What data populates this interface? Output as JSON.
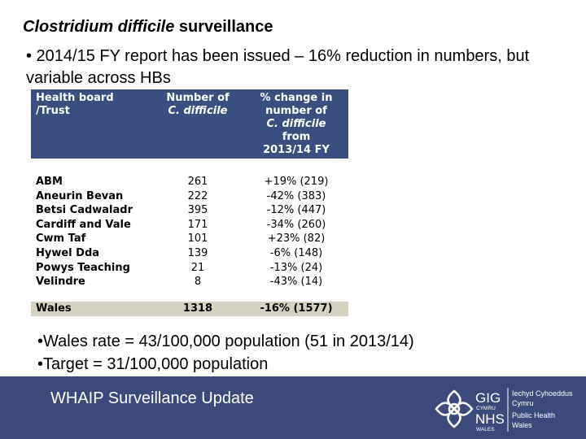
{
  "slide": {
    "title_italic": "Clostridium difficile",
    "title_rest": " surveillance",
    "bullet_main": "• 2014/15 FY report has been issued – 16% reduction in numbers, but variable across HBs",
    "bullets_lower": [
      "•Wales rate = 43/100,000 population (51 in 2013/14)",
      "•Target = 31/100,000 population"
    ]
  },
  "table": {
    "headers": {
      "col1_line1": "Health board",
      "col1_line2": "/Trust",
      "col2_line1": "Number of",
      "col2_line2": "C. difficile",
      "col3_line1": "% change in",
      "col3_line2": "number of",
      "col3_line3": "C. difficile",
      "col3_line4": "from",
      "col3_line5": "2013/14 FY"
    },
    "rows": [
      {
        "name": "ABM",
        "number": "261",
        "change": "+19% (219)"
      },
      {
        "name": "Aneurin Bevan",
        "number": "222",
        "change": "-42% (383)"
      },
      {
        "name": "Betsi Cadwaladr",
        "number": "395",
        "change": "-12% (447)"
      },
      {
        "name": "Cardiff and Vale",
        "number": "171",
        "change": "-34% (260)"
      },
      {
        "name": "Cwm Taf",
        "number": "101",
        "change": "+23% (82)"
      },
      {
        "name": "Hywel Dda",
        "number": "139",
        "change": "-6% (148)"
      },
      {
        "name": "Powys Teaching",
        "number": "21",
        "change": "-13% (24)"
      },
      {
        "name": "Velindre",
        "number": "8",
        "change": "-43% (14)"
      }
    ],
    "total": {
      "name": "Wales",
      "number": "1318",
      "change": "-16% (1577)"
    }
  },
  "footer": {
    "text": "WHAIP Surveillance Update",
    "logo": {
      "gig": "GIG",
      "cymru": "CYMRU",
      "nhs": "NHS",
      "wales": "WALES",
      "org_line1": "Iechyd Cyhoeddus",
      "org_line2": "Cymru",
      "org_line3": "Public Health",
      "org_line4": "Wales"
    }
  },
  "colors": {
    "header_bg": "#3a4f80",
    "total_bg": "#d6d2c2",
    "footer_bg": "#3b4a7a"
  }
}
